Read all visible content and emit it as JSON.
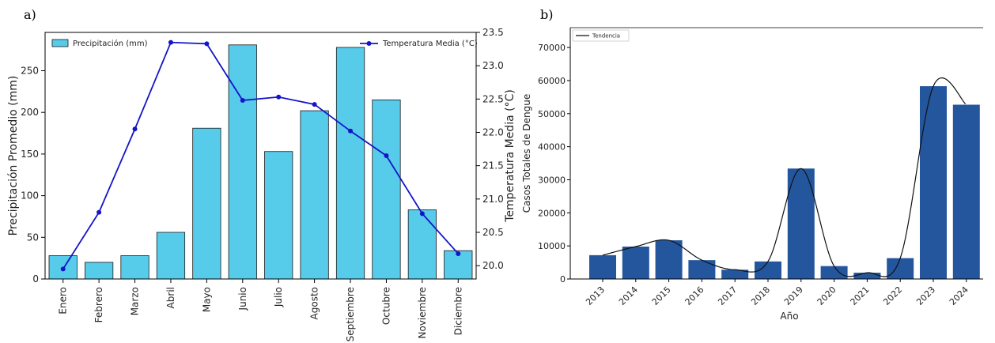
{
  "chart_data": [
    {
      "panel_label": "a)",
      "type": "bar+line",
      "categories": [
        "Enero",
        "Febrero",
        "Marzo",
        "Abril",
        "Mayo",
        "Junio",
        "Julio",
        "Agosto",
        "Septiembre",
        "Octubre",
        "Noviembre",
        "Diciembre"
      ],
      "bars": {
        "name": "Precipitación (mm)",
        "values": [
          28,
          20,
          28,
          56,
          181,
          281,
          153,
          202,
          278,
          215,
          83,
          34
        ],
        "color": "#56CBEA"
      },
      "line": {
        "name": "Temperatura Media (°C)",
        "values": [
          19.95,
          20.8,
          22.05,
          23.35,
          23.33,
          22.48,
          22.53,
          22.42,
          22.02,
          21.65,
          20.78,
          20.18
        ],
        "color": "#1515C8"
      },
      "ylabel_left": "Precipitación Promedio (mm)",
      "ylabel_right": "Temperatura Media (°C)",
      "ylim_left": [
        0,
        296
      ],
      "ylim_right": [
        19.8,
        23.5
      ],
      "yticks_left": [
        0,
        50,
        100,
        150,
        200,
        250
      ],
      "yticks_right": [
        20.0,
        20.5,
        21.0,
        21.5,
        22.0,
        22.5,
        23.0,
        23.5
      ],
      "legend_left_placement": "top-left",
      "legend_right_placement": "top-right",
      "grid": false
    },
    {
      "panel_label": "b)",
      "type": "bar+line",
      "categories": [
        "2013",
        "2014",
        "2015",
        "2016",
        "2017",
        "2018",
        "2019",
        "2020",
        "2021",
        "2022",
        "2023",
        "2024"
      ],
      "values": [
        7200,
        9800,
        11700,
        5700,
        2800,
        5300,
        33400,
        3900,
        1900,
        6300,
        58300,
        52700
      ],
      "bar_color": "#24569E",
      "trend_name": "Tendencia",
      "xlabel": "Año",
      "ylabel": "Casos Totales de Dengue",
      "ylim": [
        0,
        76000
      ],
      "yticks": [
        0,
        10000,
        20000,
        30000,
        40000,
        50000,
        60000,
        70000
      ],
      "legend_placement": "top-left",
      "grid": false
    }
  ]
}
